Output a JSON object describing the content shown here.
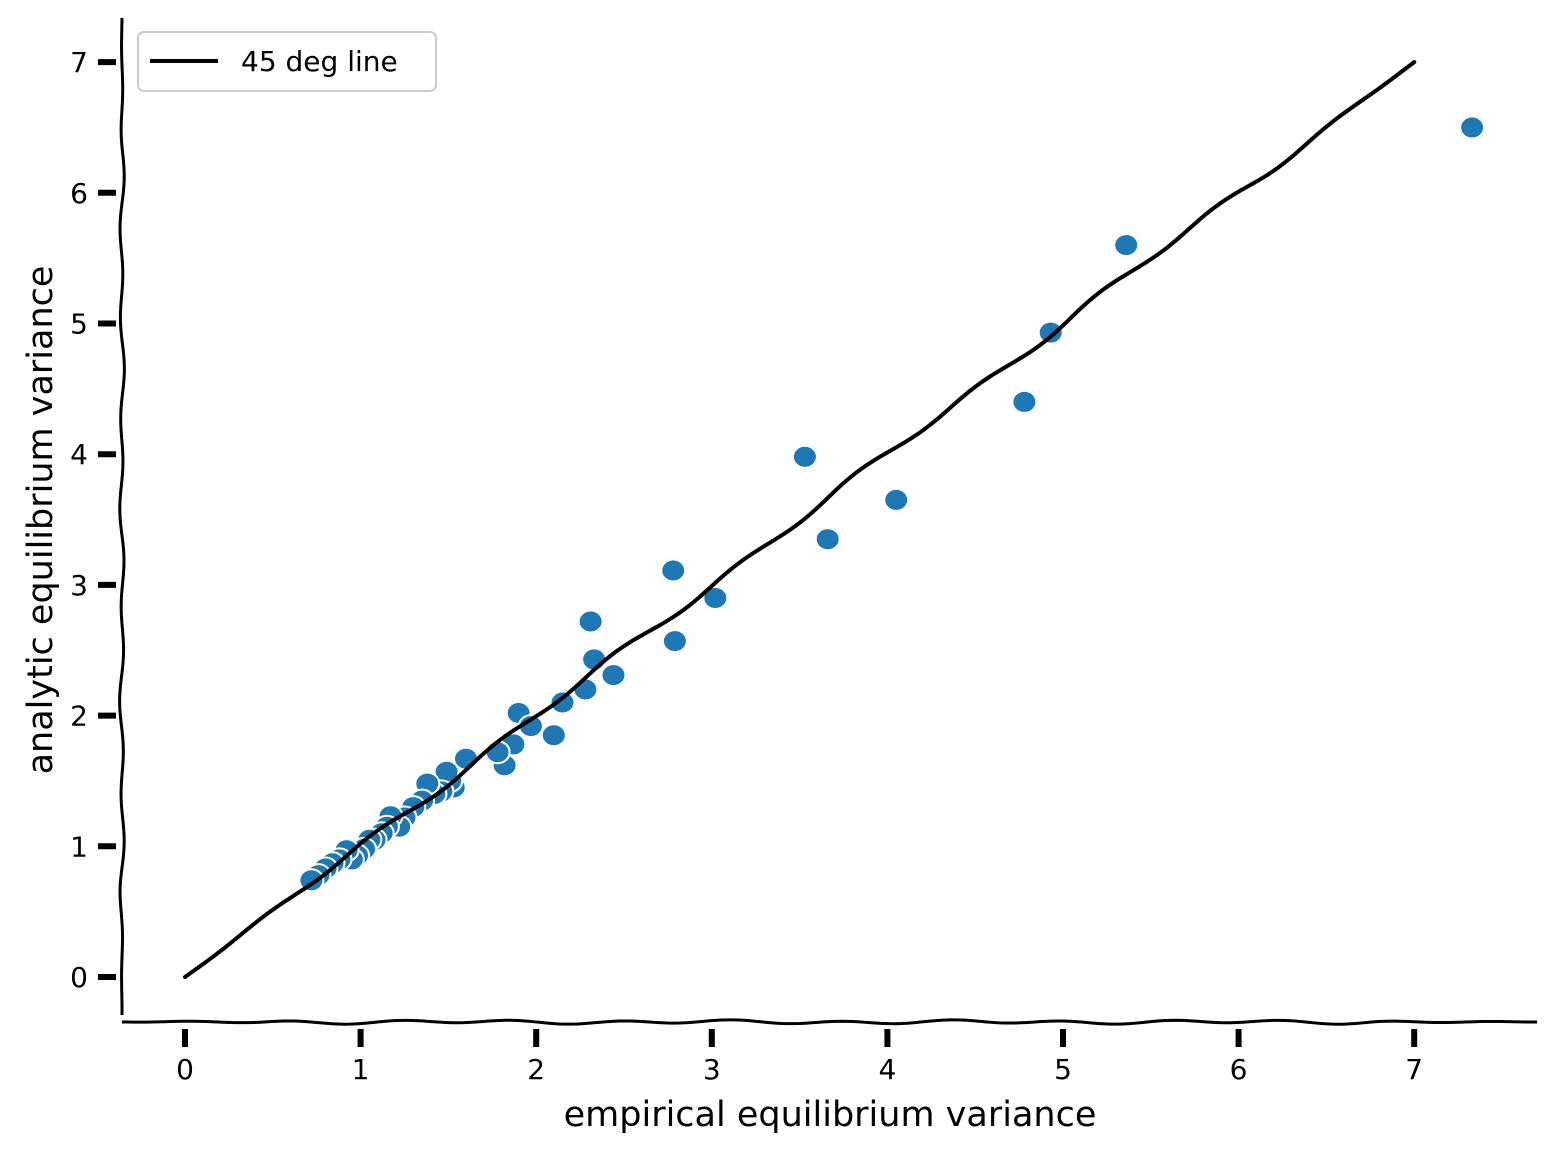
{
  "chart_data": {
    "type": "scatter",
    "title": "",
    "xlabel": "empirical equilibrium variance",
    "ylabel": "analytic equilibrium variance",
    "xlim": [
      -0.37,
      7.7
    ],
    "ylim": [
      -0.35,
      7.35
    ],
    "x_ticks": [
      0,
      1,
      2,
      3,
      4,
      5,
      6,
      7
    ],
    "y_ticks": [
      0,
      1,
      2,
      3,
      4,
      5,
      6,
      7
    ],
    "grid": false,
    "legend": {
      "position": "top-left",
      "entries": [
        "45 deg line"
      ]
    },
    "colors": {
      "points": "#1f77b4",
      "line": "#000000",
      "point_edge": "#ffffff"
    },
    "series": [
      {
        "name": "45 deg line",
        "kind": "line",
        "x": [
          0,
          7
        ],
        "y": [
          0,
          7
        ]
      },
      {
        "kind": "scatter",
        "points": [
          [
            7.33,
            6.5
          ],
          [
            5.36,
            5.6
          ],
          [
            4.93,
            4.93
          ],
          [
            4.78,
            4.4
          ],
          [
            4.05,
            3.65
          ],
          [
            3.53,
            3.98
          ],
          [
            3.66,
            3.35
          ],
          [
            3.02,
            2.9
          ],
          [
            2.78,
            3.11
          ],
          [
            2.79,
            2.57
          ],
          [
            2.31,
            2.72
          ],
          [
            2.33,
            2.43
          ],
          [
            2.44,
            2.31
          ],
          [
            2.28,
            2.2
          ],
          [
            2.15,
            2.1
          ],
          [
            2.1,
            1.85
          ],
          [
            1.9,
            2.02
          ],
          [
            1.97,
            1.92
          ],
          [
            1.87,
            1.78
          ],
          [
            1.82,
            1.62
          ],
          [
            1.78,
            1.72
          ],
          [
            1.6,
            1.67
          ],
          [
            1.53,
            1.45
          ],
          [
            1.51,
            1.5
          ],
          [
            1.49,
            1.57
          ],
          [
            1.46,
            1.42
          ],
          [
            1.42,
            1.4
          ],
          [
            1.38,
            1.48
          ],
          [
            1.35,
            1.35
          ],
          [
            1.3,
            1.3
          ],
          [
            1.25,
            1.22
          ],
          [
            1.22,
            1.15
          ],
          [
            1.17,
            1.23
          ],
          [
            1.15,
            1.15
          ],
          [
            1.12,
            1.1
          ],
          [
            1.08,
            1.05
          ],
          [
            1.05,
            1.05
          ],
          [
            1.02,
            0.98
          ],
          [
            0.98,
            0.93
          ],
          [
            0.95,
            0.9
          ],
          [
            0.92,
            0.97
          ],
          [
            0.88,
            0.9
          ],
          [
            0.84,
            0.87
          ],
          [
            0.8,
            0.83
          ],
          [
            0.76,
            0.78
          ],
          [
            0.72,
            0.74
          ]
        ]
      }
    ]
  }
}
